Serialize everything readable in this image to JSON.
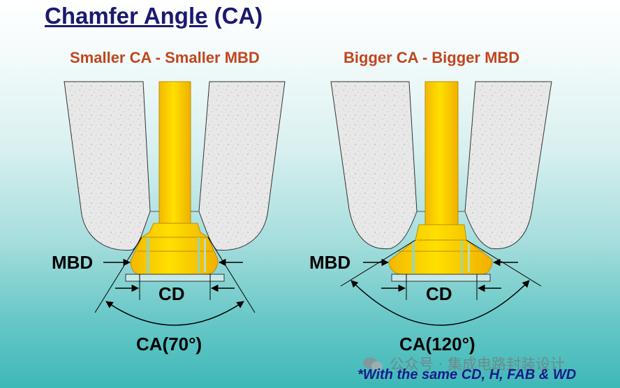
{
  "title": {
    "main": "Chamfer Angle",
    "suffix": " (CA)"
  },
  "left": {
    "subtitle": "Smaller CA - Smaller MBD",
    "mbd_label": "MBD",
    "cd_label": "CD",
    "ca_label": "CA(70°)"
  },
  "right": {
    "subtitle": "Bigger CA - Bigger MBD",
    "mbd_label": "MBD",
    "cd_label": "CD",
    "ca_label": "CA(120°)"
  },
  "watermark": {
    "text": "公众号 · 集成电路封装设计",
    "icon": "wechat-icon"
  },
  "footnote": "*With the same CD, H, FAB & WD",
  "colors": {
    "title": "#1a1a6e",
    "subtitle": "#c0461e",
    "wire": "#ffd200",
    "wire_edge": "#b89000",
    "capillary": "#e6e6e6",
    "footnote": "#1a1a8a"
  }
}
